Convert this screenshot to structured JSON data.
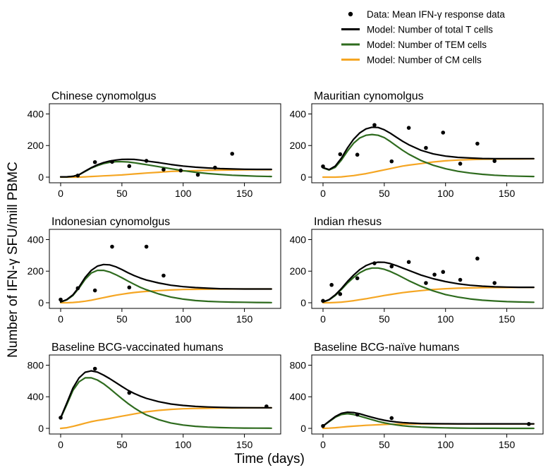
{
  "chart_data": {
    "type": "line",
    "xlabel": "Time (days)",
    "ylabel": "Number of IFN-γ SFU/mill PBMC",
    "legend_position": "top-right",
    "legend": [
      {
        "key": "data",
        "label": "Data: Mean IFN-γ response data",
        "color": "#000000",
        "kind": "point"
      },
      {
        "key": "total",
        "label": "Model: Number of total T cells",
        "color": "#000000",
        "kind": "line"
      },
      {
        "key": "tem",
        "label": "Model: Number of TEM cells",
        "color": "#2e6b1e",
        "kind": "line"
      },
      {
        "key": "cm",
        "label": "Model: Number of CM cells",
        "color": "#f5a623",
        "kind": "line"
      }
    ],
    "panels": [
      {
        "title": "Chinese cynomolgus",
        "xlim": [
          0,
          175
        ],
        "ylim": [
          0,
          420
        ],
        "xticks": [
          0,
          50,
          100,
          150
        ],
        "yticks": [
          0,
          200,
          400
        ],
        "data_points": [
          [
            14,
            10
          ],
          [
            28,
            95
          ],
          [
            42,
            97
          ],
          [
            56,
            70
          ],
          [
            70,
            103
          ],
          [
            84,
            48
          ],
          [
            98,
            42
          ],
          [
            112,
            15
          ],
          [
            126,
            60
          ],
          [
            140,
            148
          ]
        ],
        "model": {
          "x": [
            0,
            5,
            10,
            15,
            20,
            25,
            30,
            35,
            40,
            45,
            50,
            55,
            60,
            65,
            70,
            80,
            90,
            100,
            110,
            120,
            130,
            140,
            150,
            160,
            172
          ],
          "total": [
            2,
            2,
            5,
            15,
            38,
            60,
            78,
            92,
            102,
            108,
            112,
            113,
            112,
            108,
            102,
            92,
            80,
            70,
            63,
            58,
            54,
            52,
            50,
            49,
            49
          ],
          "tem": [
            2,
            2,
            5,
            15,
            36,
            57,
            73,
            86,
            94,
            98,
            98,
            96,
            91,
            85,
            79,
            66,
            53,
            41,
            31,
            23,
            17,
            12,
            9,
            6,
            4
          ],
          "cm": [
            0,
            0,
            0,
            0,
            2,
            4,
            6,
            8,
            10,
            12,
            14,
            17,
            20,
            23,
            26,
            31,
            36,
            39,
            41,
            43,
            44,
            45,
            46,
            47,
            47
          ]
        }
      },
      {
        "title": "Mauritian cynomolgus",
        "xlim": [
          0,
          175
        ],
        "ylim": [
          0,
          420
        ],
        "xticks": [
          0,
          50,
          100,
          150
        ],
        "yticks": [
          0,
          200,
          400
        ],
        "data_points": [
          [
            0,
            68
          ],
          [
            14,
            145
          ],
          [
            28,
            142
          ],
          [
            42,
            330
          ],
          [
            56,
            100
          ],
          [
            70,
            312
          ],
          [
            84,
            185
          ],
          [
            98,
            282
          ],
          [
            112,
            85
          ],
          [
            126,
            212
          ],
          [
            140,
            102
          ]
        ],
        "model": {
          "x": [
            0,
            5,
            10,
            15,
            20,
            25,
            30,
            35,
            40,
            45,
            50,
            55,
            60,
            65,
            70,
            80,
            90,
            100,
            110,
            120,
            130,
            140,
            150,
            160,
            172
          ],
          "total": [
            60,
            48,
            70,
            120,
            185,
            240,
            280,
            305,
            316,
            314,
            300,
            278,
            252,
            227,
            205,
            170,
            147,
            133,
            125,
            121,
            118,
            117,
            117,
            117,
            117
          ],
          "tem": [
            58,
            45,
            62,
            108,
            165,
            215,
            248,
            265,
            270,
            265,
            250,
            225,
            197,
            170,
            145,
            105,
            75,
            53,
            37,
            26,
            18,
            12,
            8,
            6,
            4
          ],
          "cm": [
            0,
            0,
            0,
            2,
            6,
            10,
            16,
            22,
            30,
            38,
            46,
            54,
            62,
            70,
            76,
            86,
            96,
            103,
            108,
            111,
            113,
            114,
            115,
            115,
            116
          ]
        }
      },
      {
        "title": "Indonesian cynomolgus",
        "xlim": [
          0,
          175
        ],
        "ylim": [
          0,
          420
        ],
        "xticks": [
          0,
          50,
          100,
          150
        ],
        "yticks": [
          0,
          200,
          400
        ],
        "data_points": [
          [
            0,
            20
          ],
          [
            14,
            92
          ],
          [
            28,
            78
          ],
          [
            42,
            355
          ],
          [
            56,
            97
          ],
          [
            70,
            355
          ],
          [
            84,
            172
          ]
        ],
        "model": {
          "x": [
            0,
            5,
            10,
            15,
            20,
            25,
            30,
            35,
            40,
            45,
            50,
            55,
            60,
            65,
            70,
            80,
            90,
            100,
            110,
            120,
            130,
            140,
            150,
            160,
            172
          ],
          "total": [
            5,
            20,
            50,
            100,
            160,
            205,
            232,
            242,
            240,
            228,
            210,
            190,
            172,
            157,
            144,
            125,
            111,
            102,
            96,
            92,
            89,
            88,
            87,
            87,
            87
          ],
          "tem": [
            5,
            18,
            46,
            93,
            148,
            188,
            205,
            205,
            195,
            178,
            158,
            137,
            117,
            98,
            82,
            56,
            36,
            23,
            14,
            9,
            6,
            4,
            3,
            2,
            1
          ],
          "cm": [
            0,
            0,
            2,
            5,
            10,
            16,
            24,
            32,
            40,
            48,
            54,
            60,
            65,
            69,
            72,
            77,
            81,
            84,
            85,
            86,
            87,
            87,
            87,
            87,
            87
          ]
        }
      },
      {
        "title": "Indian rhesus",
        "xlim": [
          0,
          175
        ],
        "ylim": [
          0,
          420
        ],
        "xticks": [
          0,
          50,
          100,
          150
        ],
        "yticks": [
          0,
          200,
          400
        ],
        "data_points": [
          [
            0,
            12
          ],
          [
            7,
            113
          ],
          [
            14,
            55
          ],
          [
            28,
            155
          ],
          [
            42,
            250
          ],
          [
            56,
            230
          ],
          [
            70,
            258
          ],
          [
            84,
            125
          ],
          [
            91,
            178
          ],
          [
            98,
            195
          ],
          [
            112,
            145
          ],
          [
            126,
            280
          ],
          [
            140,
            125
          ]
        ],
        "model": {
          "x": [
            0,
            5,
            10,
            15,
            20,
            25,
            30,
            35,
            40,
            45,
            50,
            55,
            60,
            65,
            70,
            80,
            90,
            100,
            110,
            120,
            130,
            140,
            150,
            160,
            172
          ],
          "total": [
            5,
            20,
            50,
            90,
            135,
            175,
            210,
            235,
            250,
            257,
            256,
            248,
            235,
            220,
            205,
            175,
            152,
            134,
            120,
            111,
            105,
            101,
            99,
            98,
            98
          ],
          "tem": [
            5,
            18,
            46,
            84,
            125,
            160,
            190,
            210,
            220,
            220,
            212,
            198,
            180,
            160,
            140,
            104,
            75,
            52,
            36,
            24,
            16,
            11,
            7,
            5,
            3
          ],
          "cm": [
            0,
            0,
            2,
            4,
            8,
            13,
            19,
            25,
            32,
            39,
            46,
            52,
            58,
            64,
            69,
            77,
            84,
            89,
            92,
            94,
            95,
            96,
            96,
            97,
            97
          ]
        }
      },
      {
        "title": "Baseline BCG-vaccinated humans",
        "xlim": [
          0,
          175
        ],
        "ylim": [
          0,
          840
        ],
        "xticks": [
          0,
          50,
          100,
          150
        ],
        "yticks": [
          0,
          400,
          800
        ],
        "data_points": [
          [
            0,
            135
          ],
          [
            28,
            755
          ],
          [
            56,
            450
          ],
          [
            168,
            278
          ]
        ],
        "model": {
          "x": [
            0,
            5,
            10,
            15,
            20,
            25,
            30,
            35,
            40,
            45,
            50,
            55,
            60,
            65,
            70,
            80,
            90,
            100,
            110,
            120,
            130,
            140,
            150,
            160,
            172
          ],
          "total": [
            135,
            320,
            510,
            640,
            710,
            728,
            712,
            675,
            630,
            580,
            530,
            483,
            442,
            408,
            380,
            338,
            308,
            290,
            278,
            271,
            266,
            263,
            262,
            261,
            261
          ],
          "tem": [
            130,
            300,
            480,
            590,
            640,
            640,
            612,
            565,
            505,
            440,
            375,
            315,
            260,
            212,
            170,
            110,
            68,
            42,
            26,
            16,
            10,
            6,
            4,
            3,
            2
          ],
          "cm": [
            0,
            8,
            25,
            45,
            65,
            85,
            100,
            112,
            125,
            140,
            155,
            168,
            182,
            196,
            210,
            228,
            240,
            248,
            252,
            255,
            257,
            258,
            259,
            260,
            260
          ]
        }
      },
      {
        "title": "Baseline BCG-naïve humans",
        "xlim": [
          0,
          175
        ],
        "ylim": [
          0,
          840
        ],
        "xticks": [
          0,
          50,
          100,
          150
        ],
        "yticks": [
          0,
          400,
          800
        ],
        "data_points": [
          [
            0,
            30
          ],
          [
            28,
            175
          ],
          [
            56,
            130
          ],
          [
            168,
            55
          ]
        ],
        "model": {
          "x": [
            0,
            5,
            10,
            15,
            20,
            25,
            30,
            35,
            40,
            45,
            50,
            55,
            60,
            65,
            70,
            80,
            90,
            100,
            110,
            120,
            130,
            140,
            150,
            160,
            172
          ],
          "total": [
            30,
            90,
            150,
            190,
            205,
            200,
            185,
            162,
            140,
            120,
            103,
            90,
            80,
            73,
            68,
            62,
            59,
            58,
            57,
            57,
            57,
            57,
            57,
            57,
            57
          ],
          "tem": [
            28,
            85,
            140,
            175,
            185,
            175,
            155,
            132,
            110,
            88,
            70,
            55,
            43,
            33,
            26,
            16,
            10,
            6,
            4,
            2,
            1,
            1,
            0,
            0,
            0
          ],
          "cm": [
            0,
            3,
            8,
            15,
            22,
            28,
            33,
            38,
            42,
            46,
            49,
            52,
            53,
            54,
            55,
            56,
            56,
            57,
            57,
            57,
            57,
            57,
            57,
            57,
            57
          ]
        }
      }
    ]
  }
}
